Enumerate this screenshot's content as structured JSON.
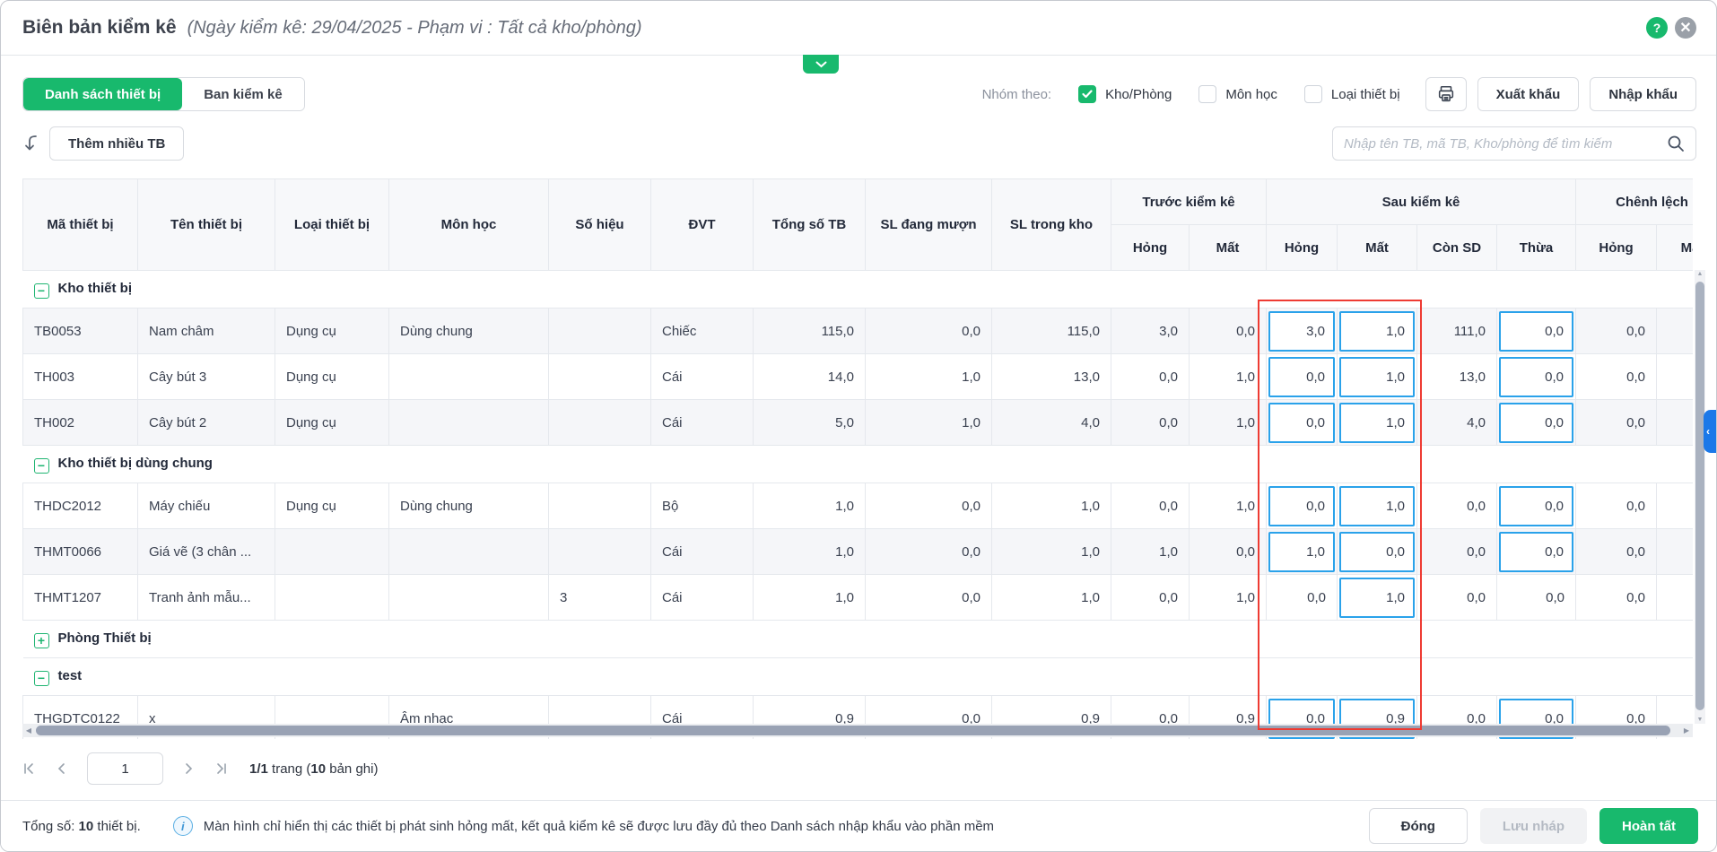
{
  "colors": {
    "accent_green": "#18b96d",
    "input_blue": "#2aa2ea",
    "highlight_red": "#ee3b33",
    "side_toggle_blue": "#1b78e8"
  },
  "header": {
    "title": "Biên bản kiểm kê",
    "subtitle": "(Ngày kiểm kê: 29/04/2025 - Phạm vi : Tất cả kho/phòng)",
    "help_glyph": "?",
    "close_glyph": "✕"
  },
  "tabs": [
    {
      "label": "Danh sách thiết bị",
      "active": true
    },
    {
      "label": "Ban kiểm kê",
      "active": false
    }
  ],
  "group_by": {
    "label": "Nhóm theo:",
    "options": [
      {
        "label": "Kho/Phòng",
        "checked": true
      },
      {
        "label": "Môn học",
        "checked": false
      },
      {
        "label": "Loại thiết bị",
        "checked": false
      }
    ]
  },
  "toolbar": {
    "export_label": "Xuất khẩu",
    "import_label": "Nhập khẩu",
    "add_many_label": "Thêm nhiều TB",
    "search_placeholder": "Nhập tên TB, mã TB, Kho/phòng để tìm kiếm"
  },
  "table": {
    "columns": [
      "Mã thiết bị",
      "Tên thiết bị",
      "Loại thiết bị",
      "Môn học",
      "Số hiệu",
      "ĐVT",
      "Tổng số TB",
      "SL đang mượn",
      "SL trong kho"
    ],
    "column_groups": [
      {
        "label": "Trước kiểm kê",
        "children": [
          "Hỏng",
          "Mất"
        ]
      },
      {
        "label": "Sau kiểm kê",
        "children": [
          "Hỏng",
          "Mất",
          "Còn SD",
          "Thừa"
        ]
      },
      {
        "label": "Chênh lệch",
        "children": [
          "Hỏng",
          "Mất"
        ]
      }
    ],
    "groups": [
      {
        "label": "Kho thiết bị",
        "expanded": true,
        "rows": [
          {
            "shade": true,
            "boxes": [
              11,
              12,
              14
            ],
            "cells": [
              "TB0053",
              "Nam châm",
              "Dụng cụ",
              "Dùng chung",
              "",
              "Chiếc",
              "115,0",
              "0,0",
              "115,0",
              "3,0",
              "0,0",
              "3,0",
              "1,0",
              "111,0",
              "0,0",
              "0,0",
              ""
            ]
          },
          {
            "shade": false,
            "boxes": [
              11,
              12,
              14
            ],
            "cells": [
              "TH003",
              "Cây bút 3",
              "Dụng cụ",
              "",
              "",
              "Cái",
              "14,0",
              "1,0",
              "13,0",
              "0,0",
              "1,0",
              "0,0",
              "1,0",
              "13,0",
              "0,0",
              "0,0",
              ""
            ]
          },
          {
            "shade": true,
            "boxes": [
              11,
              12,
              14
            ],
            "cells": [
              "TH002",
              "Cây bút 2",
              "Dụng cụ",
              "",
              "",
              "Cái",
              "5,0",
              "1,0",
              "4,0",
              "0,0",
              "1,0",
              "0,0",
              "1,0",
              "4,0",
              "0,0",
              "0,0",
              ""
            ]
          }
        ]
      },
      {
        "label": "Kho thiết bị dùng chung",
        "expanded": true,
        "rows": [
          {
            "shade": false,
            "boxes": [
              11,
              12,
              14
            ],
            "cells": [
              "THDC2012",
              "Máy chiếu",
              "Dụng cụ",
              "Dùng chung",
              "",
              "Bộ",
              "1,0",
              "0,0",
              "1,0",
              "0,0",
              "1,0",
              "0,0",
              "1,0",
              "0,0",
              "0,0",
              "0,0",
              ""
            ]
          },
          {
            "shade": true,
            "boxes": [
              11,
              12,
              14
            ],
            "cells": [
              "THMT0066",
              "Giá vẽ (3 chân ...",
              "",
              "",
              "",
              "Cái",
              "1,0",
              "0,0",
              "1,0",
              "1,0",
              "0,0",
              "1,0",
              "0,0",
              "0,0",
              "0,0",
              "0,0",
              ""
            ]
          },
          {
            "shade": false,
            "boxes": [
              12
            ],
            "cells": [
              "THMT1207",
              "Tranh ảnh mẫu...",
              "",
              "",
              "3",
              "Cái",
              "1,0",
              "0,0",
              "1,0",
              "0,0",
              "1,0",
              "0,0",
              "1,0",
              "0,0",
              "0,0",
              "0,0",
              ""
            ]
          }
        ]
      },
      {
        "label": "Phòng Thiết bị",
        "expanded": false,
        "rows": []
      },
      {
        "label": "test",
        "expanded": true,
        "rows": [
          {
            "shade": false,
            "boxes": [
              11,
              12,
              14
            ],
            "cells": [
              "THGDTC0122",
              "x",
              "",
              "Âm nhạc",
              "",
              "Cái",
              "0,9",
              "0,0",
              "0,9",
              "0,0",
              "0,9",
              "0,0",
              "0,9",
              "0,0",
              "0,0",
              "0,0",
              ""
            ]
          }
        ]
      }
    ]
  },
  "pagination": {
    "page_value": "1",
    "info_bold": "1/1",
    "info_mid": " trang (",
    "info_count": "10",
    "info_tail": " bản ghi)"
  },
  "footer": {
    "total_label": "Tổng số:",
    "total_value": "10",
    "total_suffix": " thiết bị.",
    "info_glyph": "i",
    "note": "Màn hình chỉ hiển thị các thiết bị phát sinh hỏng mất, kết quả kiểm kê sẽ được lưu đầy đủ theo Danh sách nhập khẩu vào phần mềm",
    "close_label": "Đóng",
    "draft_label": "Lưu nháp",
    "finish_label": "Hoàn tất"
  }
}
